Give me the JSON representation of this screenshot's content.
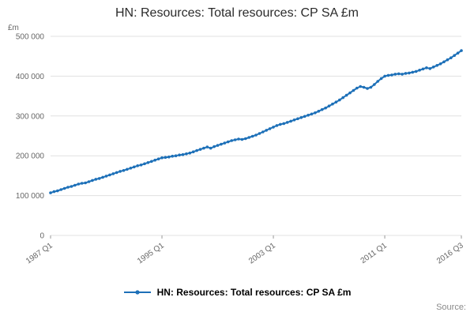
{
  "page": {
    "title": "HN: Resources: Total resources: CP SA £m",
    "source_label": "Source:",
    "legend": {
      "label": "HN: Resources: Total resources: CP SA £m"
    }
  },
  "chart_data": {
    "type": "line",
    "title": "HN: Resources: Total resources: CP SA £m",
    "xlabel": "",
    "ylabel": "£m",
    "ylim": [
      0,
      500000
    ],
    "grid": "horizontal",
    "legend_position": "bottom",
    "line_color": "#1d70b8",
    "gridline_color": "#e0e0e0",
    "tick_text_color": "#666666",
    "y_ticks": [
      0,
      100000,
      200000,
      300000,
      400000,
      500000
    ],
    "y_tick_labels": [
      "0",
      "100 000",
      "200 000",
      "300 000",
      "400 000",
      "500 000"
    ],
    "x_tick_positions": [
      0,
      32,
      64,
      96,
      118
    ],
    "x_tick_labels": [
      "1987 Q1",
      "1995 Q1",
      "2003 Q1",
      "2011 Q1",
      "2016 Q3"
    ],
    "x_range": {
      "start": "1987 Q1",
      "end": "2016 Q3",
      "frequency": "quarterly",
      "n_points": 119
    },
    "series": [
      {
        "name": "HN: Resources: Total resources: CP SA £m",
        "color": "#1d70b8",
        "values": [
          107000,
          110000,
          112000,
          115000,
          118000,
          121000,
          123000,
          126000,
          129000,
          131000,
          132000,
          135000,
          138000,
          141000,
          143000,
          146000,
          149000,
          152000,
          155000,
          158000,
          161000,
          163000,
          166000,
          169000,
          172000,
          175000,
          177000,
          180000,
          183000,
          186000,
          189000,
          192000,
          195000,
          196000,
          197000,
          199000,
          200000,
          202000,
          203000,
          205000,
          207000,
          210000,
          213000,
          216000,
          219000,
          222000,
          219000,
          223000,
          226000,
          229000,
          232000,
          235000,
          238000,
          240000,
          242000,
          241000,
          243000,
          246000,
          249000,
          252000,
          256000,
          260000,
          264000,
          268000,
          272000,
          276000,
          279000,
          281000,
          284000,
          287000,
          290000,
          293000,
          296000,
          299000,
          302000,
          305000,
          308000,
          312000,
          316000,
          320000,
          325000,
          330000,
          335000,
          340000,
          346000,
          352000,
          358000,
          364000,
          370000,
          374000,
          372000,
          369000,
          372000,
          379000,
          387000,
          394000,
          400000,
          402000,
          403000,
          405000,
          406000,
          405000,
          407000,
          408000,
          410000,
          412000,
          415000,
          418000,
          421000,
          419000,
          423000,
          427000,
          431000,
          436000,
          441000,
          446000,
          452000,
          458000,
          464000
        ]
      }
    ]
  }
}
